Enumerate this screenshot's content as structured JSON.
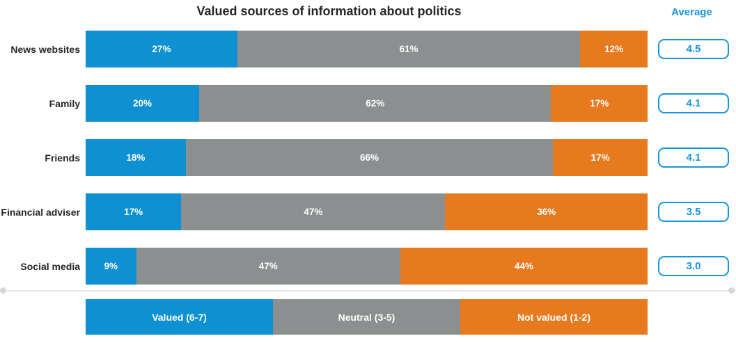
{
  "chart_data": {
    "type": "bar",
    "orientation": "horizontal-stacked",
    "title": "Valued sources of information about politics",
    "average_column_label": "Average",
    "value_suffix": "%",
    "legend_position": "bottom",
    "categories": [
      "News websites",
      "Family",
      "Friends",
      "Financial adviser",
      "Social media"
    ],
    "series": [
      {
        "key": "valued",
        "name": "Valued (6-7)",
        "color": "#0E90D2",
        "values": [
          27,
          20,
          18,
          17,
          9
        ]
      },
      {
        "key": "neutral",
        "name": "Neutral (3-5)",
        "color": "#8C8F90",
        "values": [
          61,
          62,
          66,
          47,
          47
        ]
      },
      {
        "key": "not-valued",
        "name": "Not valued (1-2)",
        "color": "#E7791F",
        "values": [
          12,
          17,
          17,
          36,
          44
        ]
      }
    ],
    "averages": [
      "4.5",
      "4.1",
      "4.1",
      "3.5",
      "3.0"
    ]
  },
  "colors": {
    "bar_valued": "#0E90D2",
    "bar_neutral": "#8C8F90",
    "bar_not_valued": "#E7791F",
    "average_accent": "#1595DC",
    "title_text": "#262626",
    "divider_line": "#E7E7EC",
    "divider_dot": "#D6D6DC",
    "background": "#ffffff"
  }
}
